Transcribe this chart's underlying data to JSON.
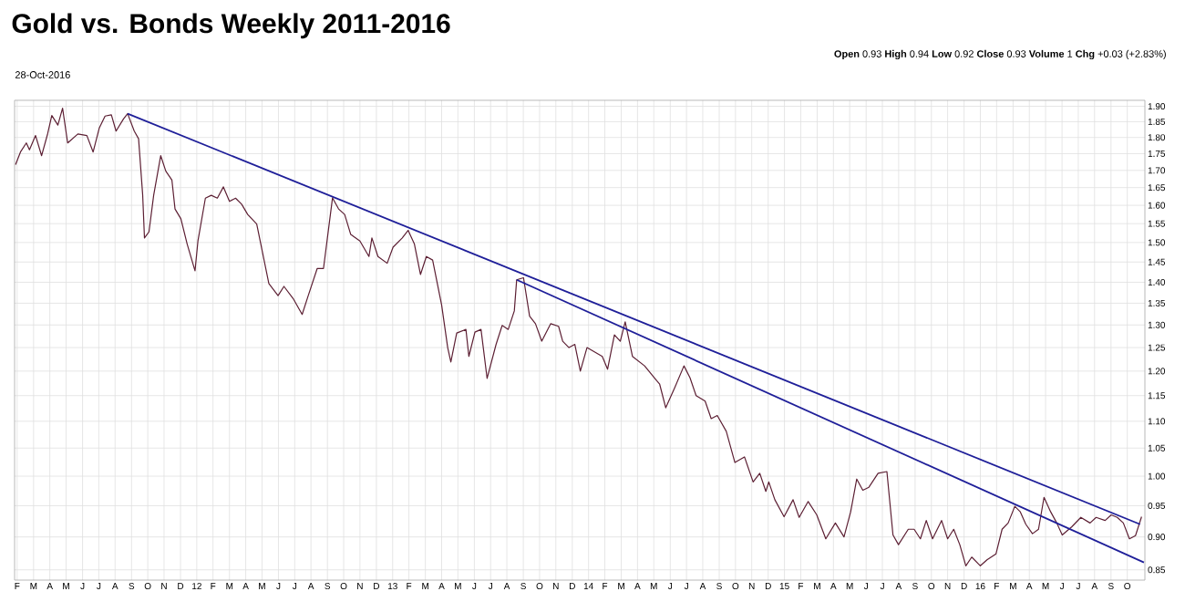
{
  "chart_data": {
    "type": "line",
    "title": "Gold vs. Bonds Weekly 2011-2016",
    "annotations": [
      "28-Oct-2016",
      "**Open** 0.93 **High** 0.94 **Low** 0.92 **Close** 0.93 **Volume** 1 **Chg** +0.03 (+2.83%)"
    ],
    "series": [
      {
        "color": "#5c1f33",
        "x": [
          2011.075,
          2011.1,
          2011.13,
          2011.146,
          2011.177,
          2011.208,
          2011.239,
          2011.26,
          2011.291,
          2011.315,
          2011.341,
          2011.393,
          2011.439,
          2011.471,
          2011.502,
          2011.532,
          2011.564,
          2011.588,
          2011.626,
          2011.647,
          2011.681,
          2011.703,
          2011.724,
          2011.733,
          2011.756,
          2011.78,
          2011.816,
          2011.842,
          2011.873,
          2011.889,
          2011.919,
          2011.951,
          2011.991,
          2012.006,
          2012.044,
          2012.074,
          2012.105,
          2012.136,
          2012.167,
          2012.198,
          2012.229,
          2012.26,
          2012.306,
          2012.368,
          2012.415,
          2012.445,
          2012.492,
          2012.538,
          2012.569,
          2012.615,
          2012.647,
          2012.693,
          2012.724,
          2012.755,
          2012.786,
          2012.833,
          2012.879,
          2012.894,
          2012.925,
          2012.972,
          2013.002,
          2013.049,
          2013.079,
          2013.111,
          2013.142,
          2013.172,
          2013.204,
          2013.25,
          2013.281,
          2013.297,
          2013.327,
          2013.374,
          2013.389,
          2013.42,
          2013.451,
          2013.482,
          2013.528,
          2013.559,
          2013.59,
          2013.621,
          2013.633,
          2013.668,
          2013.699,
          2013.729,
          2013.761,
          2013.807,
          2013.847,
          2013.868,
          2013.9,
          2013.93,
          2013.958,
          2013.992,
          2014.07,
          2014.097,
          2014.132,
          2014.162,
          2014.187,
          2014.224,
          2014.286,
          2014.348,
          2014.363,
          2014.394,
          2014.441,
          2014.487,
          2014.518,
          2014.549,
          2014.595,
          2014.626,
          2014.657,
          2014.703,
          2014.747,
          2014.796,
          2014.84,
          2014.874,
          2014.905,
          2014.92,
          2014.951,
          2014.998,
          2015.044,
          2015.075,
          2015.121,
          2015.165,
          2015.211,
          2015.26,
          2015.304,
          2015.338,
          2015.369,
          2015.4,
          2015.431,
          2015.478,
          2015.523,
          2015.554,
          2015.582,
          2015.632,
          2015.662,
          2015.694,
          2015.724,
          2015.756,
          2015.802,
          2015.833,
          2015.864,
          2015.895,
          2015.926,
          2015.956,
          2016.0,
          2016.034,
          2016.08,
          2016.111,
          2016.142,
          2016.176,
          2016.204,
          2016.232,
          2016.266,
          2016.297,
          2016.325,
          2016.359,
          2016.39,
          2016.418,
          2016.467,
          2016.513,
          2016.56,
          2016.591,
          2016.637,
          2016.668,
          2016.699,
          2016.73,
          2016.761,
          2016.792,
          2016.823
        ],
        "values": [
          1.717,
          1.755,
          1.783,
          1.762,
          1.806,
          1.744,
          1.812,
          1.87,
          1.839,
          1.894,
          1.783,
          1.811,
          1.806,
          1.755,
          1.829,
          1.868,
          1.872,
          1.82,
          1.859,
          1.876,
          1.82,
          1.796,
          1.628,
          1.512,
          1.528,
          1.628,
          1.744,
          1.698,
          1.672,
          1.59,
          1.563,
          1.496,
          1.428,
          1.504,
          1.62,
          1.628,
          1.62,
          1.652,
          1.611,
          1.62,
          1.603,
          1.575,
          1.549,
          1.397,
          1.368,
          1.39,
          1.361,
          1.324,
          1.368,
          1.434,
          1.434,
          1.621,
          1.59,
          1.575,
          1.521,
          1.504,
          1.464,
          1.512,
          1.464,
          1.447,
          1.488,
          1.512,
          1.532,
          1.496,
          1.419,
          1.464,
          1.455,
          1.346,
          1.25,
          1.219,
          1.282,
          1.29,
          1.231,
          1.284,
          1.29,
          1.185,
          1.257,
          1.299,
          1.29,
          1.332,
          1.406,
          1.411,
          1.32,
          1.303,
          1.264,
          1.303,
          1.297,
          1.264,
          1.25,
          1.257,
          1.2,
          1.25,
          1.231,
          1.204,
          1.278,
          1.264,
          1.307,
          1.231,
          1.211,
          1.18,
          1.173,
          1.126,
          1.167,
          1.211,
          1.186,
          1.15,
          1.139,
          1.105,
          1.111,
          1.081,
          1.024,
          1.034,
          0.99,
          1.005,
          0.974,
          0.99,
          0.96,
          0.932,
          0.96,
          0.931,
          0.957,
          0.935,
          0.897,
          0.922,
          0.9,
          0.94,
          0.995,
          0.976,
          0.981,
          1.005,
          1.008,
          0.903,
          0.888,
          0.912,
          0.912,
          0.897,
          0.926,
          0.897,
          0.926,
          0.897,
          0.912,
          0.888,
          0.856,
          0.869,
          0.856,
          0.865,
          0.874,
          0.912,
          0.922,
          0.949,
          0.94,
          0.92,
          0.905,
          0.912,
          0.964,
          0.94,
          0.922,
          0.903,
          0.916,
          0.931,
          0.922,
          0.931,
          0.926,
          0.935,
          0.931,
          0.922,
          0.897,
          0.902,
          0.932
        ]
      },
      {
        "color": "#1f1f99",
        "x": [
          2011.647,
          2016.815
        ],
        "values": [
          1.876,
          0.92
        ]
      },
      {
        "color": "#1f1f99",
        "x": [
          2013.633,
          2016.835
        ],
        "values": [
          1.406,
          0.861
        ]
      }
    ],
    "xlim": [
      2011.07,
      2016.84
    ],
    "ylim": [
      0.835,
      1.92
    ],
    "log": "y",
    "grid": true,
    "marker": "none",
    "line_style": "solid",
    "xticks": [
      {
        "value": 2011.083,
        "label": "F"
      },
      {
        "value": 2011.167,
        "label": "M"
      },
      {
        "value": 2011.25,
        "label": "A"
      },
      {
        "value": 2011.333,
        "label": "M"
      },
      {
        "value": 2011.417,
        "label": "J"
      },
      {
        "value": 2011.5,
        "label": "J"
      },
      {
        "value": 2011.583,
        "label": "A"
      },
      {
        "value": 2011.667,
        "label": "S"
      },
      {
        "value": 2011.75,
        "label": "O"
      },
      {
        "value": 2011.833,
        "label": "N"
      },
      {
        "value": 2011.917,
        "label": "D"
      },
      {
        "value": 2012.0,
        "label": "12"
      },
      {
        "value": 2012.083,
        "label": "F"
      },
      {
        "value": 2012.167,
        "label": "M"
      },
      {
        "value": 2012.25,
        "label": "A"
      },
      {
        "value": 2012.333,
        "label": "M"
      },
      {
        "value": 2012.417,
        "label": "J"
      },
      {
        "value": 2012.5,
        "label": "J"
      },
      {
        "value": 2012.583,
        "label": "A"
      },
      {
        "value": 2012.667,
        "label": "S"
      },
      {
        "value": 2012.75,
        "label": "O"
      },
      {
        "value": 2012.833,
        "label": "N"
      },
      {
        "value": 2012.917,
        "label": "D"
      },
      {
        "value": 2013.0,
        "label": "13"
      },
      {
        "value": 2013.083,
        "label": "F"
      },
      {
        "value": 2013.167,
        "label": "M"
      },
      {
        "value": 2013.25,
        "label": "A"
      },
      {
        "value": 2013.333,
        "label": "M"
      },
      {
        "value": 2013.417,
        "label": "J"
      },
      {
        "value": 2013.5,
        "label": "J"
      },
      {
        "value": 2013.583,
        "label": "A"
      },
      {
        "value": 2013.667,
        "label": "S"
      },
      {
        "value": 2013.75,
        "label": "O"
      },
      {
        "value": 2013.833,
        "label": "N"
      },
      {
        "value": 2013.917,
        "label": "D"
      },
      {
        "value": 2014.0,
        "label": "14"
      },
      {
        "value": 2014.083,
        "label": "F"
      },
      {
        "value": 2014.167,
        "label": "M"
      },
      {
        "value": 2014.25,
        "label": "A"
      },
      {
        "value": 2014.333,
        "label": "M"
      },
      {
        "value": 2014.417,
        "label": "J"
      },
      {
        "value": 2014.5,
        "label": "J"
      },
      {
        "value": 2014.583,
        "label": "A"
      },
      {
        "value": 2014.667,
        "label": "S"
      },
      {
        "value": 2014.75,
        "label": "O"
      },
      {
        "value": 2014.833,
        "label": "N"
      },
      {
        "value": 2014.917,
        "label": "D"
      },
      {
        "value": 2015.0,
        "label": "15"
      },
      {
        "value": 2015.083,
        "label": "F"
      },
      {
        "value": 2015.167,
        "label": "M"
      },
      {
        "value": 2015.25,
        "label": "A"
      },
      {
        "value": 2015.333,
        "label": "M"
      },
      {
        "value": 2015.417,
        "label": "J"
      },
      {
        "value": 2015.5,
        "label": "J"
      },
      {
        "value": 2015.583,
        "label": "A"
      },
      {
        "value": 2015.667,
        "label": "S"
      },
      {
        "value": 2015.75,
        "label": "O"
      },
      {
        "value": 2015.833,
        "label": "N"
      },
      {
        "value": 2015.917,
        "label": "D"
      },
      {
        "value": 2016.0,
        "label": "16"
      },
      {
        "value": 2016.083,
        "label": "F"
      },
      {
        "value": 2016.167,
        "label": "M"
      },
      {
        "value": 2016.25,
        "label": "A"
      },
      {
        "value": 2016.333,
        "label": "M"
      },
      {
        "value": 2016.417,
        "label": "J"
      },
      {
        "value": 2016.5,
        "label": "J"
      },
      {
        "value": 2016.583,
        "label": "A"
      },
      {
        "value": 2016.667,
        "label": "S"
      },
      {
        "value": 2016.75,
        "label": "O"
      }
    ],
    "yticks": [
      {
        "value": 0.85,
        "label": "0.85"
      },
      {
        "value": 0.9,
        "label": "0.90"
      },
      {
        "value": 0.95,
        "label": "0.95"
      },
      {
        "value": 1.0,
        "label": "1.00"
      },
      {
        "value": 1.05,
        "label": "1.05"
      },
      {
        "value": 1.1,
        "label": "1.10"
      },
      {
        "value": 1.15,
        "label": "1.15"
      },
      {
        "value": 1.2,
        "label": "1.20"
      },
      {
        "value": 1.25,
        "label": "1.25"
      },
      {
        "value": 1.3,
        "label": "1.30"
      },
      {
        "value": 1.35,
        "label": "1.35"
      },
      {
        "value": 1.4,
        "label": "1.40"
      },
      {
        "value": 1.45,
        "label": "1.45"
      },
      {
        "value": 1.5,
        "label": "1.50"
      },
      {
        "value": 1.55,
        "label": "1.55"
      },
      {
        "value": 1.6,
        "label": "1.60"
      },
      {
        "value": 1.65,
        "label": "1.65"
      },
      {
        "value": 1.7,
        "label": "1.70"
      },
      {
        "value": 1.75,
        "label": "1.75"
      },
      {
        "value": 1.8,
        "label": "1.80"
      },
      {
        "value": 1.85,
        "label": "1.85"
      },
      {
        "value": 1.9,
        "label": "1.90"
      }
    ]
  }
}
